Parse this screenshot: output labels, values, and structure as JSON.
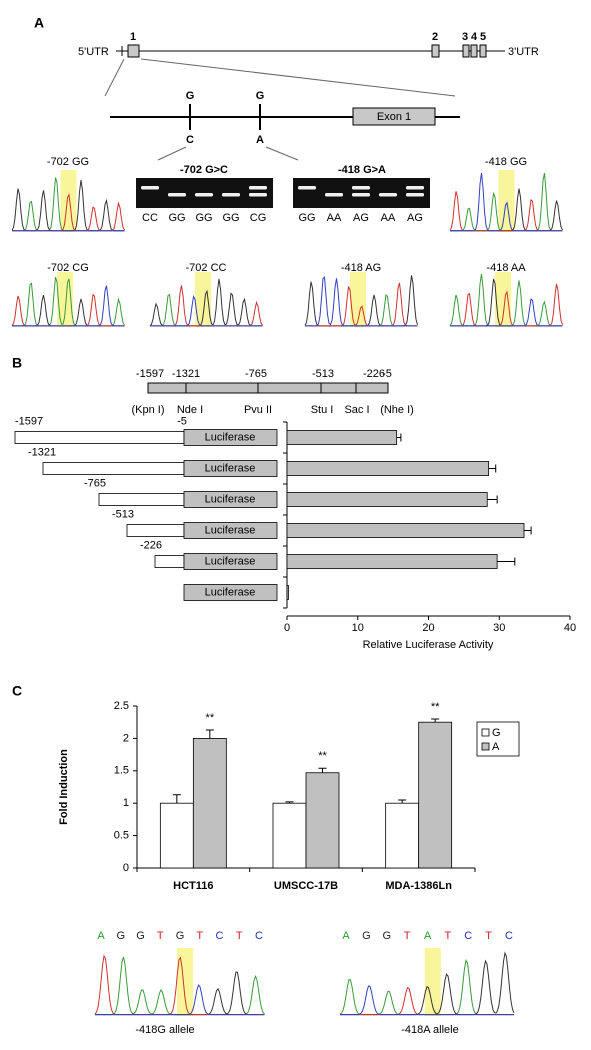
{
  "panel_a": {
    "label": "A",
    "gene": {
      "utr5": "5'UTR",
      "utr3": "3'UTR",
      "exons": [
        "1",
        "2",
        "3",
        "4",
        "5"
      ]
    },
    "detail": {
      "exon": "Exon 1",
      "snp1": {
        "ref": "G",
        "alt": "C"
      },
      "snp2": {
        "ref": "G",
        "alt": "A"
      }
    },
    "traces": [
      "-702 GG",
      "-418 GG",
      "-702 CG",
      "-702 CC",
      "-418 AG",
      "-418 AA"
    ],
    "gels": [
      {
        "title": "-702 G>C",
        "lanes": [
          "CC",
          "GG",
          "GG",
          "GG",
          "CG"
        ]
      },
      {
        "title": "-418 G>A",
        "lanes": [
          "GG",
          "AA",
          "AG",
          "AA",
          "AG"
        ]
      }
    ]
  },
  "panel_b": {
    "label": "B",
    "map_positions": [
      "-1597",
      "-1321",
      "-765",
      "-513",
      "-226",
      "-5"
    ],
    "map_sites": [
      "(Kpn I)",
      "Nde I",
      "Pvu II",
      "Stu I",
      "Sac I",
      "(Nhe I)"
    ],
    "reporter": "Luciferase",
    "end": "-5"
  },
  "panel_c": {
    "label": "C",
    "sequences": [
      {
        "bases": [
          "A",
          "G",
          "G",
          "T",
          "G",
          "T",
          "C",
          "T",
          "C"
        ],
        "colors": [
          "#2a9a2a",
          "#222",
          "#222",
          "#d02020",
          "#222",
          "#d02020",
          "#2030c0",
          "#d02020",
          "#2030c0"
        ],
        "caption": "-418G allele"
      },
      {
        "bases": [
          "A",
          "G",
          "G",
          "T",
          "A",
          "T",
          "C",
          "T",
          "C"
        ],
        "colors": [
          "#2a9a2a",
          "#222",
          "#222",
          "#d02020",
          "#2a9a2a",
          "#d02020",
          "#2030c0",
          "#d02020",
          "#2030c0"
        ],
        "caption": "-418A allele"
      }
    ]
  },
  "chart_data": [
    {
      "type": "hbar",
      "categories": [
        "-1597",
        "-1321",
        "-765",
        "-513",
        "-226",
        null
      ],
      "values": [
        15.5,
        28.5,
        28.3,
        33.5,
        29.7,
        0.2
      ],
      "errors": [
        0.6,
        1.0,
        1.4,
        1.0,
        2.5,
        0
      ],
      "color": "#c0c0c0",
      "xlabel": "Relative Luciferase Activity",
      "xlim": [
        0,
        40
      ],
      "xticks": [
        0,
        10,
        20,
        30,
        40
      ]
    },
    {
      "type": "bar",
      "ylabel": "Fold Induction",
      "categories": [
        "HCT116",
        "UMSCC-17B",
        "MDA-1386Ln"
      ],
      "series": [
        {
          "name": "G",
          "color": "#ffffff",
          "values": [
            1,
            1,
            1
          ],
          "errors": [
            0.13,
            0.02,
            0.05
          ]
        },
        {
          "name": "A",
          "color": "#c0c0c0",
          "values": [
            2.0,
            1.47,
            2.25
          ],
          "errors": [
            0.13,
            0.07,
            0.05
          ]
        }
      ],
      "annotations": [
        "**",
        "**",
        "**"
      ],
      "ylim": [
        0,
        2.5
      ],
      "yticks": [
        0,
        0.5,
        1,
        1.5,
        2,
        2.5
      ],
      "legend": "upper right"
    }
  ]
}
